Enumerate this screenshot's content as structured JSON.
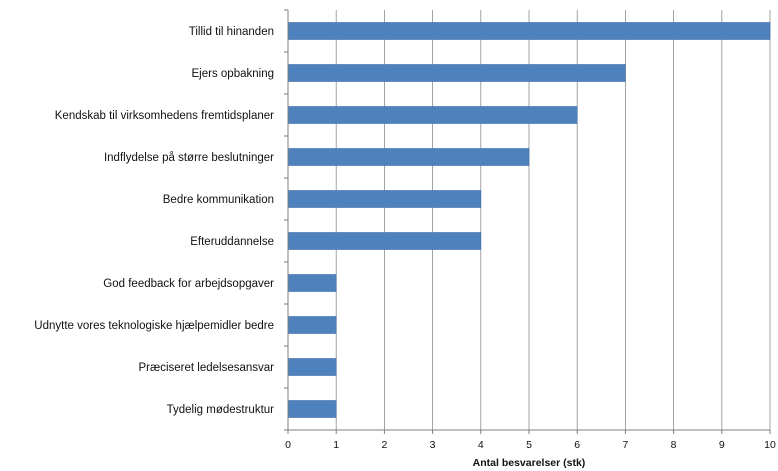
{
  "chart_data": {
    "type": "bar",
    "orientation": "horizontal",
    "categories": [
      "Tillid til hinanden",
      "Ejers opbakning",
      "Kendskab til virksomhedens fremtidsplaner",
      "Indflydelse på større beslutninger",
      "Bedre kommunikation",
      "Efteruddannelse",
      "God feedback for arbejdsopgaver",
      "Udnytte vores teknologiske hjælpemidler bedre",
      "Præciseret ledelsesansvar",
      "Tydelig mødestruktur"
    ],
    "values": [
      10,
      7,
      6,
      5,
      4,
      4,
      1,
      1,
      1,
      1
    ],
    "xlabel": "Antal besvarelser (stk)",
    "ylabel": "",
    "xlim": [
      0,
      10
    ],
    "xticks": [
      "0",
      "1",
      "2",
      "3",
      "4",
      "5",
      "6",
      "7",
      "8",
      "9",
      "10"
    ],
    "grid": "vertical",
    "legend": "none",
    "colors": {
      "bar": "#4f81bd",
      "bar_edge": "#3f6fa8",
      "grid": "#8c8c8c",
      "axis": "#7f7f7f"
    }
  }
}
